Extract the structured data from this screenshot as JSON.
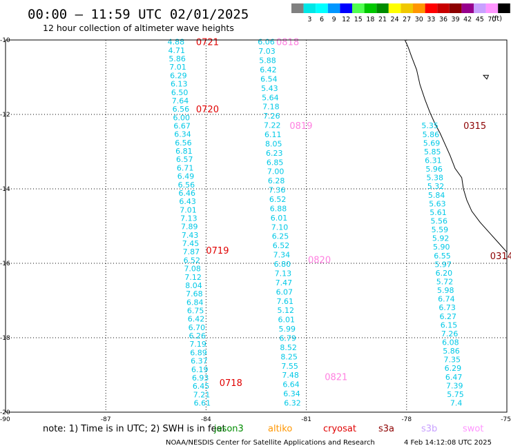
{
  "header": {
    "title": "00:00 – 11:59 UTC 02/01/2025",
    "subtitle": "12 hour collection of altimeter wave heights"
  },
  "legend": {
    "unit": "(ft)",
    "entries": [
      {
        "label": "",
        "color": "#808080"
      },
      {
        "label": "3",
        "color": "#00e6e6"
      },
      {
        "label": "6",
        "color": "#00ffff"
      },
      {
        "label": "9",
        "color": "#0096ff"
      },
      {
        "label": "12",
        "color": "#0000ff"
      },
      {
        "label": "15",
        "color": "#50ff50"
      },
      {
        "label": "18",
        "color": "#00c800"
      },
      {
        "label": "21",
        "color": "#008c00"
      },
      {
        "label": "24",
        "color": "#ffff00"
      },
      {
        "label": "27",
        "color": "#f0c800"
      },
      {
        "label": "30",
        "color": "#ff9600"
      },
      {
        "label": "33",
        "color": "#ff0000"
      },
      {
        "label": "36",
        "color": "#c80000"
      },
      {
        "label": "39",
        "color": "#8c0000"
      },
      {
        "label": "42",
        "color": "#96008c"
      },
      {
        "label": "45",
        "color": "#c8a0ff"
      },
      {
        "label": "70",
        "color": "#ff96ff"
      },
      {
        "label": "",
        "color": "#000000"
      }
    ]
  },
  "map": {
    "lon_ticks": [
      -90,
      -87,
      -84,
      -81,
      -78,
      -75
    ],
    "lat_ticks": [
      -10,
      -12,
      -14,
      -16,
      -18,
      -20
    ],
    "lon_range": [
      -90,
      -75
    ],
    "lat_range": [
      -10,
      -20
    ],
    "wave_color": "#00c8e6",
    "coast_color": "#000000",
    "tracks": [
      {
        "lon": -84.9,
        "lat_start": -10.05,
        "lat_end": -19.75,
        "values": [
          "4.88",
          "4.71",
          "5.86",
          "7.01",
          "6.29",
          "6.13",
          "6.50",
          "7.64",
          "6.56",
          "6.00",
          "6.67",
          "6.34",
          "6.56",
          "6.81",
          "6.57",
          "6.71",
          "6.49",
          "6.56",
          "6.46",
          "6.43",
          "7.01",
          "7.13",
          "7.89",
          "7.43",
          "7.45",
          "7.87",
          "6.52",
          "7.08",
          "7.12",
          "8.04",
          "7.68",
          "6.84",
          "6.75",
          "6.42",
          "6.70",
          "6.26",
          "7.19",
          "6.89",
          "6.37",
          "6.19",
          "6.93",
          "6.45",
          "7.21",
          "6.61"
        ]
      },
      {
        "lon": -82.2,
        "lat_start": -10.05,
        "lat_end": -19.75,
        "values": [
          "6.06",
          "7.03",
          "5.88",
          "6.42",
          "6.54",
          "5.43",
          "5.64",
          "7.18",
          "7.26",
          "7.22",
          "6.11",
          "8.05",
          "6.23",
          "6.85",
          "7.00",
          "6.28",
          "7.36",
          "6.52",
          "6.88",
          "6.01",
          "7.10",
          "6.25",
          "6.52",
          "7.34",
          "6.80",
          "7.13",
          "7.47",
          "6.07",
          "7.61",
          "5.12",
          "6.01",
          "5.99",
          "6.79",
          "8.52",
          "8.25",
          "7.55",
          "7.48",
          "6.64",
          "6.34",
          "6.32"
        ]
      },
      {
        "lon": -77.3,
        "lat_start": -12.3,
        "lat_end": -19.75,
        "values": [
          "5.35",
          "5.86",
          "5.69",
          "5.85",
          "6.31",
          "5.96",
          "5.38",
          "5.32",
          "5.84",
          "5.63",
          "5.61",
          "5.56",
          "5.59",
          "5.92",
          "5.90",
          "6.55",
          "5.97",
          "6.20",
          "5.72",
          "5.98",
          "6.74",
          "6.73",
          "6.27",
          "6.15",
          "7.26",
          "6.08",
          "5.86",
          "7.35",
          "6.29",
          "6.47",
          "7.39",
          "5.75",
          "7.4"
        ]
      }
    ],
    "pass_labels": [
      {
        "text": "0721",
        "lon": -84.3,
        "lat": -10.05,
        "color": "#e00000"
      },
      {
        "text": "0720",
        "lon": -84.3,
        "lat": -11.85,
        "color": "#e00000"
      },
      {
        "text": "0719",
        "lon": -84.0,
        "lat": -15.65,
        "color": "#e00000"
      },
      {
        "text": "0718",
        "lon": -83.6,
        "lat": -19.2,
        "color": "#e00000"
      },
      {
        "text": "0818",
        "lon": -81.9,
        "lat": -10.05,
        "color": "#ff80e0"
      },
      {
        "text": "0819",
        "lon": -81.5,
        "lat": -12.3,
        "color": "#ff80e0"
      },
      {
        "text": "0820",
        "lon": -80.95,
        "lat": -15.9,
        "color": "#ff80e0"
      },
      {
        "text": "0821",
        "lon": -80.45,
        "lat": -19.05,
        "color": "#ff80e0"
      },
      {
        "text": "0315",
        "lon": -76.3,
        "lat": -12.3,
        "color": "#8c0000"
      },
      {
        "text": "0314",
        "lon": -75.5,
        "lat": -15.8,
        "color": "#8c0000"
      }
    ],
    "coastline": [
      [
        -78.05,
        -10.0
      ],
      [
        -77.95,
        -10.2
      ],
      [
        -77.85,
        -10.45
      ],
      [
        -77.7,
        -10.8
      ],
      [
        -77.6,
        -11.2
      ],
      [
        -77.45,
        -11.6
      ],
      [
        -77.3,
        -11.95
      ],
      [
        -77.15,
        -12.25
      ],
      [
        -77.0,
        -12.5
      ],
      [
        -76.85,
        -12.8
      ],
      [
        -76.7,
        -13.1
      ],
      [
        -76.55,
        -13.45
      ],
      [
        -76.35,
        -13.7
      ],
      [
        -76.3,
        -14.0
      ],
      [
        -76.2,
        -14.3
      ],
      [
        -76.05,
        -14.6
      ],
      [
        -75.8,
        -14.9
      ],
      [
        -75.5,
        -15.2
      ],
      [
        -75.2,
        -15.5
      ],
      [
        -75.0,
        -15.7
      ]
    ],
    "island": [
      [
        -75.7,
        -10.95
      ],
      [
        -75.55,
        -10.95
      ],
      [
        -75.6,
        -11.05
      ],
      [
        -75.7,
        -10.95
      ]
    ]
  },
  "footer": {
    "note": "note: 1) Time is in UTC; 2) SWH is in feet",
    "sats": [
      {
        "name": "jason3",
        "color": "#008c00"
      },
      {
        "name": "altiko",
        "color": "#ff9600"
      },
      {
        "name": "cryosat",
        "color": "#e00000"
      },
      {
        "name": "s3a",
        "color": "#8c0000"
      },
      {
        "name": "s3b",
        "color": "#c8a0ff"
      },
      {
        "name": "swot",
        "color": "#ff96ff"
      }
    ],
    "credit": "NOAA/NESDIS Center for Satellite Applications and Research",
    "timestamp": "4 Feb 14:12:08 UTC 2025"
  }
}
